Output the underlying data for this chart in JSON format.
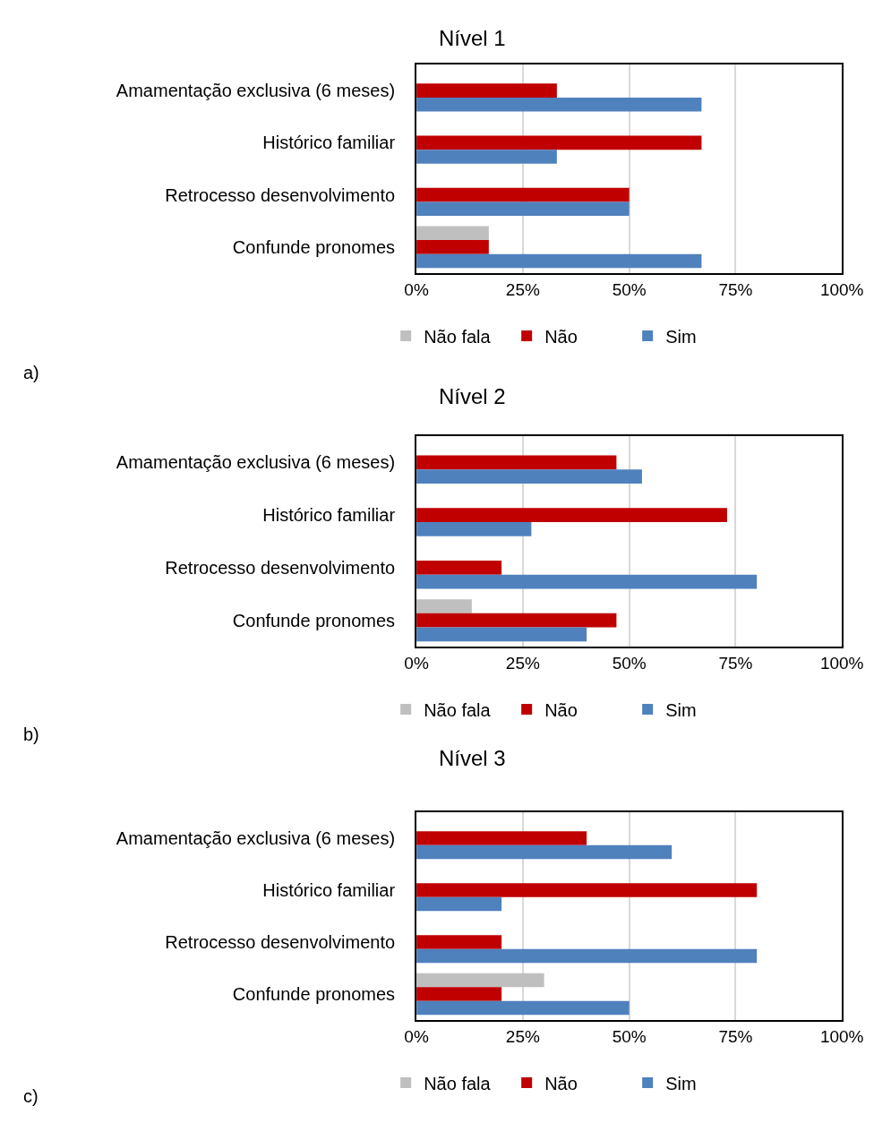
{
  "chart_data": [
    {
      "type": "bar",
      "orientation": "horizontal",
      "title": "Nível 1",
      "annotations": [
        "a)"
      ],
      "categories": [
        "Amamentação exclusiva (6 meses)",
        "Histórico familiar",
        "Retrocesso desenvolvimento",
        "Confunde pronomes"
      ],
      "series": [
        {
          "name": "Não fala",
          "color": "#bfbfbf",
          "values": [
            null,
            null,
            null,
            17
          ]
        },
        {
          "name": "Não",
          "color": "#c00000",
          "values": [
            33,
            67,
            50,
            17
          ]
        },
        {
          "name": "Sim",
          "color": "#4f81bd",
          "values": [
            67,
            33,
            50,
            67
          ]
        }
      ],
      "xlim": [
        0,
        100
      ],
      "xticks": [
        {
          "value": 0,
          "label": "0%"
        },
        {
          "value": 25,
          "label": "25%"
        },
        {
          "value": 50,
          "label": "50%"
        },
        {
          "value": 75,
          "label": "75%"
        },
        {
          "value": 100,
          "label": "100%"
        }
      ],
      "grid": "x",
      "legend": "bottom"
    },
    {
      "type": "bar",
      "orientation": "horizontal",
      "title": "Nível 2",
      "annotations": [
        "b)"
      ],
      "categories": [
        "Amamentação exclusiva (6 meses)",
        "Histórico familiar",
        "Retrocesso desenvolvimento",
        "Confunde pronomes"
      ],
      "series": [
        {
          "name": "Não fala",
          "color": "#bfbfbf",
          "values": [
            null,
            null,
            null,
            13
          ]
        },
        {
          "name": "Não",
          "color": "#c00000",
          "values": [
            47,
            73,
            20,
            47
          ]
        },
        {
          "name": "Sim",
          "color": "#4f81bd",
          "values": [
            53,
            27,
            80,
            40
          ]
        }
      ],
      "xlim": [
        0,
        100
      ],
      "xticks": [
        {
          "value": 0,
          "label": "0%"
        },
        {
          "value": 25,
          "label": "25%"
        },
        {
          "value": 50,
          "label": "50%"
        },
        {
          "value": 75,
          "label": "75%"
        },
        {
          "value": 100,
          "label": "100%"
        }
      ],
      "grid": "x",
      "legend": "bottom"
    },
    {
      "type": "bar",
      "orientation": "horizontal",
      "title": "Nível 3",
      "annotations": [
        "c)"
      ],
      "categories": [
        "Amamentação exclusiva (6 meses)",
        "Histórico familiar",
        "Retrocesso desenvolvimento",
        "Confunde pronomes"
      ],
      "series": [
        {
          "name": "Não fala",
          "color": "#bfbfbf",
          "values": [
            null,
            null,
            null,
            30
          ]
        },
        {
          "name": "Não",
          "color": "#c00000",
          "values": [
            40,
            80,
            20,
            20
          ]
        },
        {
          "name": "Sim",
          "color": "#4f81bd",
          "values": [
            60,
            20,
            80,
            50
          ]
        }
      ],
      "xlim": [
        0,
        100
      ],
      "xticks": [
        {
          "value": 0,
          "label": "0%"
        },
        {
          "value": 25,
          "label": "25%"
        },
        {
          "value": 50,
          "label": "50%"
        },
        {
          "value": 75,
          "label": "75%"
        },
        {
          "value": 100,
          "label": "100%"
        }
      ],
      "grid": "x",
      "legend": "bottom"
    }
  ]
}
